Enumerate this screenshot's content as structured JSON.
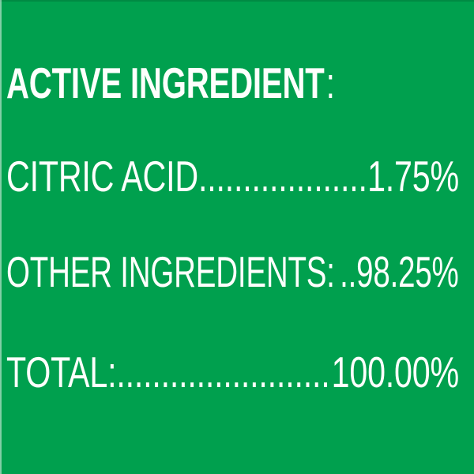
{
  "panel": {
    "background_color": "#00A04E",
    "text_color": "#FDFFFC"
  },
  "header": {
    "title": "ACTIVE INGREDIENT",
    "colon": ":"
  },
  "rows": [
    {
      "label": "CITRIC ACID",
      "leader": "......................",
      "value": "1.75%"
    },
    {
      "label": "OTHER INGREDIENTS:",
      "leader": "..",
      "value": "98.25%"
    },
    {
      "label": "TOTAL:",
      "leader": ".............................",
      "value": "100.00%"
    }
  ]
}
